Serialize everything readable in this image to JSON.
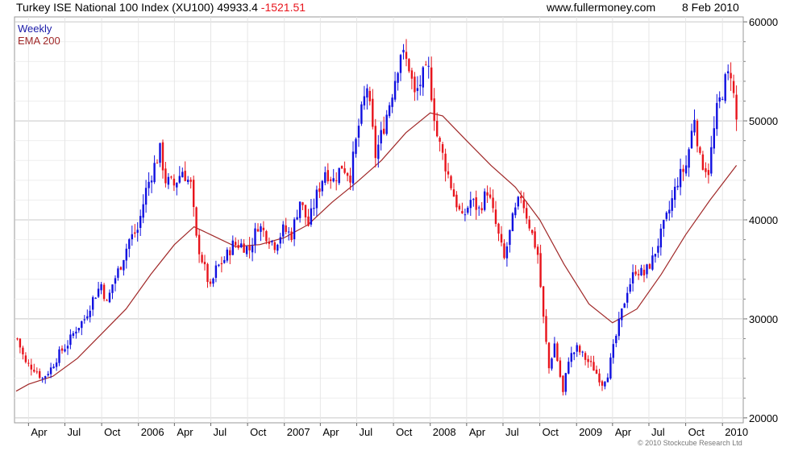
{
  "header": {
    "title": "Turkey ISE National 100 Index (XU100) 49933.4",
    "change": "-1521.51",
    "website": "www.fullermoney.com",
    "date": "8 Feb 2010"
  },
  "copyright": "© 2010 Stockcube Research Ltd",
  "chart_data": {
    "type": "candlestick",
    "xlim": [
      "2005-02-25",
      "2010-02-22"
    ],
    "ylim": [
      19500,
      60500
    ],
    "grid": true,
    "legend_placement": "top-left",
    "y_ticks": [
      {
        "value": 20000,
        "label": "20000"
      },
      {
        "value": 30000,
        "label": "30000"
      },
      {
        "value": 40000,
        "label": "40000"
      },
      {
        "value": 50000,
        "label": "50000"
      },
      {
        "value": 60000,
        "label": "60000"
      }
    ],
    "x_ticks": [
      {
        "date": "2005-04-01",
        "label": "Apr"
      },
      {
        "date": "2005-07-01",
        "label": "Jul"
      },
      {
        "date": "2005-10-01",
        "label": "Oct"
      },
      {
        "date": "2006-01-01",
        "label": "2006"
      },
      {
        "date": "2006-04-01",
        "label": "Apr"
      },
      {
        "date": "2006-07-01",
        "label": "Jul"
      },
      {
        "date": "2006-10-01",
        "label": "Oct"
      },
      {
        "date": "2007-01-01",
        "label": "2007"
      },
      {
        "date": "2007-04-01",
        "label": "Apr"
      },
      {
        "date": "2007-07-01",
        "label": "Jul"
      },
      {
        "date": "2007-10-01",
        "label": "Oct"
      },
      {
        "date": "2008-01-01",
        "label": "2008"
      },
      {
        "date": "2008-04-01",
        "label": "Apr"
      },
      {
        "date": "2008-07-01",
        "label": "Jul"
      },
      {
        "date": "2008-10-01",
        "label": "Oct"
      },
      {
        "date": "2009-01-01",
        "label": "2009"
      },
      {
        "date": "2009-04-01",
        "label": "Apr"
      },
      {
        "date": "2009-07-01",
        "label": "Jul"
      },
      {
        "date": "2009-10-01",
        "label": "Oct"
      },
      {
        "date": "2010-01-01",
        "label": "2010"
      }
    ],
    "series": [
      {
        "name": "Weekly",
        "kind": "candles",
        "up_color": "#1010e0",
        "down_color": "#e8141c",
        "close_anchors": [
          [
            "2005-03-04",
            28000
          ],
          [
            "2005-03-25",
            25500
          ],
          [
            "2005-04-15",
            25000
          ],
          [
            "2005-05-06",
            24000
          ],
          [
            "2005-05-27",
            25000
          ],
          [
            "2005-06-17",
            26500
          ],
          [
            "2005-07-08",
            27500
          ],
          [
            "2005-07-29",
            29000
          ],
          [
            "2005-08-19",
            30000
          ],
          [
            "2005-09-09",
            32000
          ],
          [
            "2005-09-30",
            33500
          ],
          [
            "2005-10-14",
            31500
          ],
          [
            "2005-10-28",
            33500
          ],
          [
            "2005-11-18",
            35500
          ],
          [
            "2005-12-09",
            38000
          ],
          [
            "2005-12-30",
            39000
          ],
          [
            "2006-01-20",
            43000
          ],
          [
            "2006-02-10",
            45500
          ],
          [
            "2006-02-24",
            47000
          ],
          [
            "2006-03-10",
            44000
          ],
          [
            "2006-03-31",
            43500
          ],
          [
            "2006-04-21",
            45000
          ],
          [
            "2006-05-12",
            43500
          ],
          [
            "2006-05-26",
            38000
          ],
          [
            "2006-06-16",
            35000
          ],
          [
            "2006-06-30",
            33000
          ],
          [
            "2006-07-14",
            35000
          ],
          [
            "2006-08-04",
            36000
          ],
          [
            "2006-08-25",
            37500
          ],
          [
            "2006-09-15",
            37500
          ],
          [
            "2006-10-06",
            37000
          ],
          [
            "2006-10-27",
            39500
          ],
          [
            "2006-11-17",
            38500
          ],
          [
            "2006-12-08",
            37500
          ],
          [
            "2006-12-29",
            39000
          ],
          [
            "2007-01-19",
            38500
          ],
          [
            "2007-02-09",
            42000
          ],
          [
            "2007-03-02",
            39500
          ],
          [
            "2007-03-23",
            42500
          ],
          [
            "2007-04-13",
            45000
          ],
          [
            "2007-05-04",
            44000
          ],
          [
            "2007-05-25",
            45500
          ],
          [
            "2007-06-15",
            44500
          ],
          [
            "2007-07-06",
            49500
          ],
          [
            "2007-07-27",
            53500
          ],
          [
            "2007-08-17",
            46500
          ],
          [
            "2007-09-07",
            49500
          ],
          [
            "2007-09-28",
            53000
          ],
          [
            "2007-10-19",
            57000
          ],
          [
            "2007-11-09",
            55500
          ],
          [
            "2007-11-23",
            52500
          ],
          [
            "2007-12-14",
            54500
          ],
          [
            "2007-12-28",
            55000
          ],
          [
            "2008-01-18",
            48500
          ],
          [
            "2008-02-08",
            45500
          ],
          [
            "2008-02-29",
            42500
          ],
          [
            "2008-03-21",
            40000
          ],
          [
            "2008-04-11",
            42000
          ],
          [
            "2008-05-02",
            41000
          ],
          [
            "2008-05-23",
            43000
          ],
          [
            "2008-06-13",
            39500
          ],
          [
            "2008-07-04",
            36000
          ],
          [
            "2008-07-25",
            40000
          ],
          [
            "2008-08-15",
            42500
          ],
          [
            "2008-09-05",
            39500
          ],
          [
            "2008-09-26",
            36500
          ],
          [
            "2008-10-10",
            30000
          ],
          [
            "2008-10-24",
            25000
          ],
          [
            "2008-11-07",
            27500
          ],
          [
            "2008-11-28",
            22500
          ],
          [
            "2008-12-12",
            26000
          ],
          [
            "2009-01-02",
            27000
          ],
          [
            "2009-01-23",
            26000
          ],
          [
            "2009-02-13",
            25000
          ],
          [
            "2009-03-06",
            23500
          ],
          [
            "2009-03-20",
            24500
          ],
          [
            "2009-04-03",
            27000
          ],
          [
            "2009-04-17",
            29500
          ],
          [
            "2009-05-08",
            33000
          ],
          [
            "2009-05-29",
            35000
          ],
          [
            "2009-06-19",
            34500
          ],
          [
            "2009-07-10",
            36000
          ],
          [
            "2009-07-31",
            38500
          ],
          [
            "2009-08-21",
            41000
          ],
          [
            "2009-09-11",
            44000
          ],
          [
            "2009-10-02",
            45500
          ],
          [
            "2009-10-23",
            50500
          ],
          [
            "2009-11-06",
            46000
          ],
          [
            "2009-11-27",
            45000
          ],
          [
            "2009-12-18",
            51000
          ],
          [
            "2010-01-08",
            54000
          ],
          [
            "2010-01-22",
            55000
          ],
          [
            "2010-02-05",
            50000
          ]
        ]
      },
      {
        "name": "EMA 200",
        "kind": "line",
        "color": "#a02828",
        "points": [
          [
            "2005-03-01",
            22700
          ],
          [
            "2005-04-01",
            23400
          ],
          [
            "2005-06-01",
            24200
          ],
          [
            "2005-08-01",
            26000
          ],
          [
            "2005-10-01",
            28500
          ],
          [
            "2005-12-01",
            31000
          ],
          [
            "2006-02-01",
            34500
          ],
          [
            "2006-04-01",
            37500
          ],
          [
            "2006-05-20",
            39300
          ],
          [
            "2006-07-01",
            38500
          ],
          [
            "2006-09-01",
            37300
          ],
          [
            "2006-11-01",
            37500
          ],
          [
            "2007-01-01",
            38200
          ],
          [
            "2007-03-01",
            39500
          ],
          [
            "2007-05-01",
            41800
          ],
          [
            "2007-07-01",
            43800
          ],
          [
            "2007-09-01",
            46000
          ],
          [
            "2007-11-01",
            48800
          ],
          [
            "2008-01-01",
            50800
          ],
          [
            "2008-02-01",
            50500
          ],
          [
            "2008-04-01",
            48000
          ],
          [
            "2008-06-01",
            45500
          ],
          [
            "2008-08-01",
            43300
          ],
          [
            "2008-10-01",
            40000
          ],
          [
            "2008-12-01",
            35500
          ],
          [
            "2009-02-01",
            31500
          ],
          [
            "2009-04-01",
            29600
          ],
          [
            "2009-06-01",
            31000
          ],
          [
            "2009-08-01",
            34500
          ],
          [
            "2009-10-01",
            38500
          ],
          [
            "2009-12-01",
            42000
          ],
          [
            "2010-02-05",
            45500
          ]
        ]
      }
    ]
  }
}
